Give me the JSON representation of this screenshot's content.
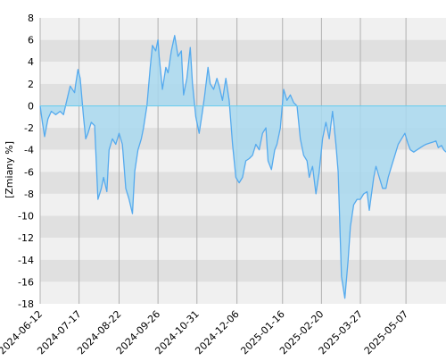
{
  "chart_data": {
    "type": "area",
    "title": "",
    "xlabel": "",
    "ylabel": "[Zmiany %]",
    "ylim": [
      -18,
      8
    ],
    "yticks": [
      8,
      6,
      4,
      2,
      0,
      -2,
      -4,
      -6,
      -8,
      -10,
      -12,
      -14,
      -16,
      -18
    ],
    "xlim": [
      "2024-06-12",
      "2025-06-12"
    ],
    "xticks": [
      "2024-06-12",
      "2024-07-17",
      "2024-08-22",
      "2024-09-26",
      "2024-10-31",
      "2024-12-06",
      "2025-01-16",
      "2025-02-20",
      "2025-03-27",
      "2025-05-07"
    ],
    "grid": true,
    "legend": "none",
    "colors": {
      "line": "#55aaee",
      "fill": "#a8d8ee",
      "band_light": "#f0f0f0",
      "band_dark": "#e0e0e0",
      "zero_line": "#66ccee",
      "grid_vertical": "#b0b0b0"
    },
    "series": [
      {
        "x": [
          "2024-06-12",
          "2024-06-14",
          "2024-06-16",
          "2024-06-19",
          "2024-06-22",
          "2024-06-26",
          "2024-06-30",
          "2024-07-03",
          "2024-07-06",
          "2024-07-09",
          "2024-07-13",
          "2024-07-14",
          "2024-07-16",
          "2024-07-18",
          "2024-07-21",
          "2024-07-23",
          "2024-07-25",
          "2024-07-28",
          "2024-07-31",
          "2024-08-03",
          "2024-08-06",
          "2024-08-08",
          "2024-08-11",
          "2024-08-13",
          "2024-08-16",
          "2024-08-19",
          "2024-08-22",
          "2024-08-25",
          "2024-08-28",
          "2024-08-31",
          "2024-09-03",
          "2024-09-05",
          "2024-09-08",
          "2024-09-11",
          "2024-09-13",
          "2024-09-16",
          "2024-09-19",
          "2024-09-21",
          "2024-09-24",
          "2024-09-26",
          "2024-09-27",
          "2024-09-30",
          "2024-10-03",
          "2024-10-05",
          "2024-10-08",
          "2024-10-11",
          "2024-10-14",
          "2024-10-17",
          "2024-10-19",
          "2024-10-22",
          "2024-10-25",
          "2024-10-27",
          "2024-10-30",
          "2024-11-02",
          "2024-11-05",
          "2024-11-07",
          "2024-11-10",
          "2024-11-12",
          "2024-11-15",
          "2024-11-18",
          "2024-11-20",
          "2024-11-23",
          "2024-11-26",
          "2024-11-29",
          "2024-12-02",
          "2024-12-05",
          "2024-12-08",
          "2024-12-11",
          "2024-12-14",
          "2024-12-17",
          "2024-12-20",
          "2024-12-23",
          "2024-12-26",
          "2024-12-29",
          "2025-01-01",
          "2025-01-03",
          "2025-01-06",
          "2025-01-09",
          "2025-01-11",
          "2025-01-14",
          "2025-01-17",
          "2025-01-20",
          "2025-01-23",
          "2025-01-26",
          "2025-01-29",
          "2025-02-01",
          "2025-02-04",
          "2025-02-07",
          "2025-02-09",
          "2025-02-12",
          "2025-02-15",
          "2025-02-18",
          "2025-02-21",
          "2025-02-24",
          "2025-02-27",
          "2025-03-02",
          "2025-03-05",
          "2025-03-07",
          "2025-03-10",
          "2025-03-13",
          "2025-03-16",
          "2025-03-18",
          "2025-03-21",
          "2025-03-24",
          "2025-03-27",
          "2025-03-30",
          "2025-04-02",
          "2025-04-04",
          "2025-04-06",
          "2025-04-08",
          "2025-04-10",
          "2025-04-13",
          "2025-04-16",
          "2025-04-19",
          "2025-04-21",
          "2025-04-24",
          "2025-04-27",
          "2025-04-30",
          "2025-05-03",
          "2025-05-06",
          "2025-05-09",
          "2025-05-11",
          "2025-05-14",
          "2025-05-17",
          "2025-05-20",
          "2025-05-23",
          "2025-05-25",
          "2025-05-28",
          "2025-05-31",
          "2025-06-03",
          "2025-06-05",
          "2025-06-08",
          "2025-06-10",
          "2025-06-12"
        ],
        "y": [
          0,
          -1.5,
          -2.8,
          -1.2,
          -0.5,
          -0.8,
          -0.5,
          -0.8,
          0.5,
          1.8,
          1.2,
          2.0,
          3.3,
          2.5,
          -1.0,
          -3.0,
          -2.5,
          -1.5,
          -1.8,
          -8.5,
          -7.5,
          -6.5,
          -7.8,
          -4.0,
          -3.0,
          -3.5,
          -2.5,
          -3.5,
          -7.5,
          -8.5,
          -9.8,
          -6.0,
          -4.0,
          -3.0,
          -2.0,
          0.0,
          3.5,
          5.5,
          5.0,
          6.0,
          4.5,
          1.5,
          3.5,
          3.0,
          5.0,
          6.4,
          4.5,
          5.0,
          1.0,
          2.5,
          5.3,
          2.0,
          -1.0,
          -2.5,
          -0.5,
          1.0,
          3.5,
          2.0,
          1.5,
          2.5,
          1.8,
          0.5,
          2.5,
          0.5,
          -3.5,
          -6.5,
          -7.0,
          -6.5,
          -5.0,
          -4.8,
          -4.5,
          -3.5,
          -4.0,
          -2.5,
          -2.0,
          -5.0,
          -5.8,
          -4.0,
          -3.5,
          -2.0,
          1.5,
          0.5,
          1.0,
          0.3,
          0.0,
          -3.0,
          -4.5,
          -5.0,
          -6.5,
          -5.5,
          -8.0,
          -6.0,
          -3.0,
          -1.5,
          -3.0,
          -0.5,
          -3.5,
          -6.0,
          -15.5,
          -17.5,
          -14.0,
          -11.0,
          -9.0,
          -8.5,
          -8.5,
          -8.0,
          -7.8,
          -9.5,
          -8.0,
          -6.5,
          -5.5,
          -6.5,
          -7.5,
          -7.5,
          -6.5,
          -5.5,
          -4.5,
          -3.5,
          -3.0,
          -2.5,
          -3.5,
          -4.0,
          -4.2,
          -4.0,
          -3.8,
          -3.6,
          -3.5,
          -3.4,
          -3.3,
          -3.2,
          -3.8,
          -3.6,
          -4.0,
          -4.2
        ]
      }
    ]
  }
}
